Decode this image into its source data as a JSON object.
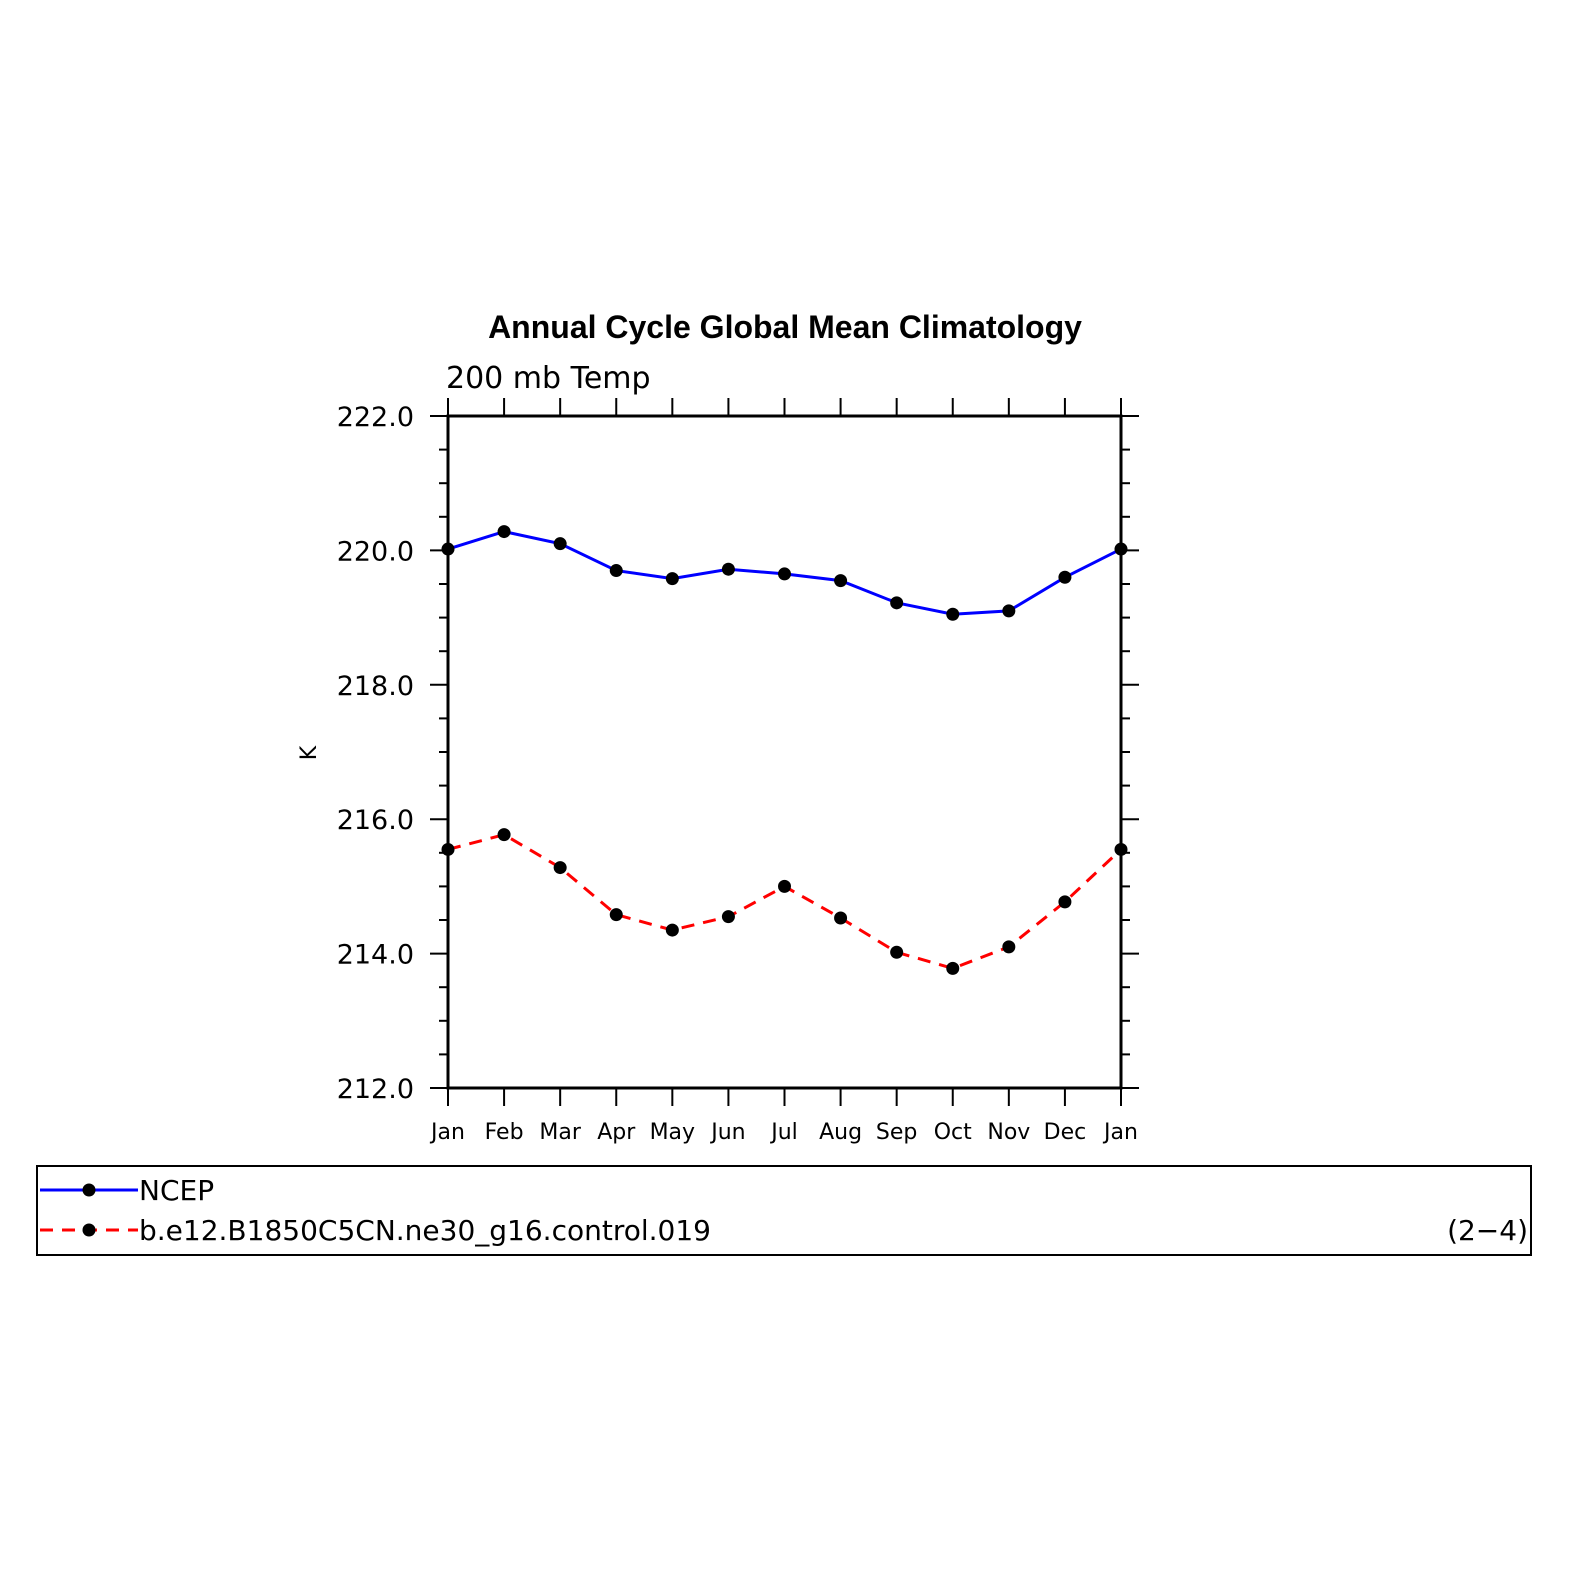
{
  "chart_data": {
    "type": "line",
    "title": "Annual Cycle Global Mean Climatology",
    "subtitle": "200 mb Temp",
    "ylabel": "K",
    "xlabel": "",
    "ylim": [
      212.0,
      222.0
    ],
    "yticks": [
      "212.0",
      "214.0",
      "216.0",
      "218.0",
      "220.0",
      "222.0"
    ],
    "categories": [
      "Jan",
      "Feb",
      "Mar",
      "Apr",
      "May",
      "Jun",
      "Jul",
      "Aug",
      "Sep",
      "Oct",
      "Nov",
      "Dec",
      "Jan"
    ],
    "series": [
      {
        "name": "NCEP",
        "color": "#0000ff",
        "style": "solid",
        "marker": "filled-circle",
        "values": [
          220.02,
          220.28,
          220.1,
          219.7,
          219.58,
          219.72,
          219.65,
          219.55,
          219.22,
          219.05,
          219.1,
          219.6,
          220.02
        ]
      },
      {
        "name": "b.e12.B1850C5CN.ne30_g16.control.019",
        "color": "#ff0000",
        "style": "dashed",
        "marker": "filled-circle",
        "values": [
          215.55,
          215.77,
          215.28,
          214.58,
          214.35,
          214.55,
          215.0,
          214.53,
          214.02,
          213.78,
          214.1,
          214.77,
          215.55
        ]
      }
    ],
    "grid": false,
    "legend_position": "bottom",
    "panel_label": "(2−4)"
  }
}
